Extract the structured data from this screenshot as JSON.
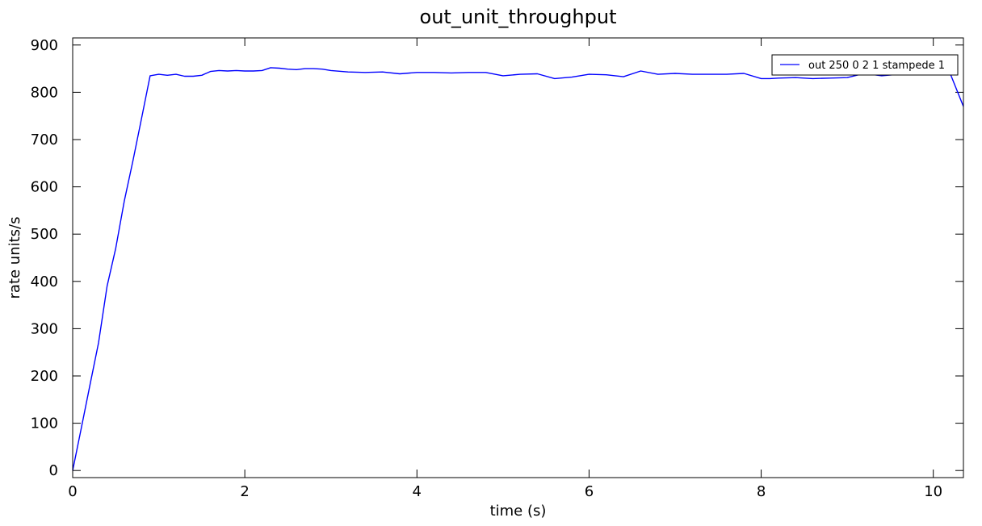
{
  "chart_data": {
    "type": "line",
    "title": "out_unit_throughput",
    "xlabel": "time (s)",
    "ylabel": "rate units/s",
    "xlim": [
      0,
      10.35
    ],
    "ylim": [
      -15,
      915
    ],
    "xticks": [
      0,
      2,
      4,
      6,
      8,
      10
    ],
    "yticks": [
      0,
      100,
      200,
      300,
      400,
      500,
      600,
      700,
      800,
      900
    ],
    "xtick_labels": [
      "0",
      "2",
      "4",
      "6",
      "8",
      "10"
    ],
    "ytick_labels": [
      "0",
      "100",
      "200",
      "300",
      "400",
      "500",
      "600",
      "700",
      "800",
      "900"
    ],
    "grid": false,
    "legend_position": "top-right",
    "series": [
      {
        "name": "out 250 0 2 1 stampede 1",
        "color": "#0000ff",
        "x": [
          0.0,
          0.1,
          0.2,
          0.3,
          0.4,
          0.5,
          0.6,
          0.7,
          0.8,
          0.9,
          1.0,
          1.1,
          1.2,
          1.3,
          1.4,
          1.5,
          1.6,
          1.7,
          1.8,
          1.9,
          2.0,
          2.1,
          2.2,
          2.3,
          2.4,
          2.5,
          2.6,
          2.7,
          2.8,
          2.9,
          3.0,
          3.2,
          3.4,
          3.6,
          3.8,
          4.0,
          4.2,
          4.4,
          4.6,
          4.8,
          5.0,
          5.2,
          5.4,
          5.6,
          5.8,
          6.0,
          6.2,
          6.4,
          6.6,
          6.8,
          7.0,
          7.2,
          7.4,
          7.6,
          7.8,
          8.0,
          8.1,
          8.2,
          8.4,
          8.6,
          8.8,
          9.0,
          9.2,
          9.4,
          9.6,
          9.8,
          10.0,
          10.1,
          10.2,
          10.35
        ],
        "y": [
          0,
          90,
          180,
          270,
          390,
          470,
          570,
          655,
          745,
          835,
          838,
          836,
          838,
          834,
          834,
          836,
          844,
          846,
          845,
          846,
          845,
          845,
          846,
          852,
          851,
          849,
          848,
          850,
          850,
          849,
          846,
          843,
          842,
          843,
          839,
          842,
          842,
          841,
          842,
          842,
          835,
          838,
          839,
          829,
          832,
          838,
          837,
          833,
          845,
          838,
          840,
          838,
          838,
          838,
          840,
          829,
          829,
          830,
          831,
          829,
          830,
          831,
          840,
          835,
          838,
          841,
          841,
          841,
          838,
          770
        ]
      }
    ]
  }
}
